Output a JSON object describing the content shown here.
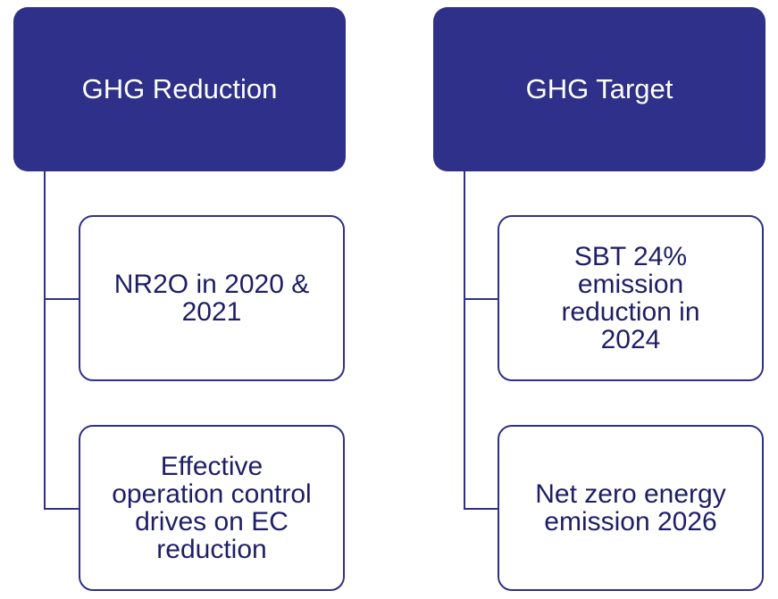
{
  "headers": [
    {
      "label": "GHG Reduction",
      "children": [
        {
          "lines": [
            "NR2O in 2020 &",
            "2021"
          ]
        },
        {
          "lines": [
            "Effective",
            "operation control",
            "drives on EC",
            "reduction"
          ]
        }
      ]
    },
    {
      "label": "GHG Target",
      "children": [
        {
          "lines": [
            "SBT 24%",
            "emission",
            "reduction in",
            "2024"
          ]
        },
        {
          "lines": [
            "Net zero energy",
            "emission 2026"
          ]
        }
      ]
    }
  ]
}
